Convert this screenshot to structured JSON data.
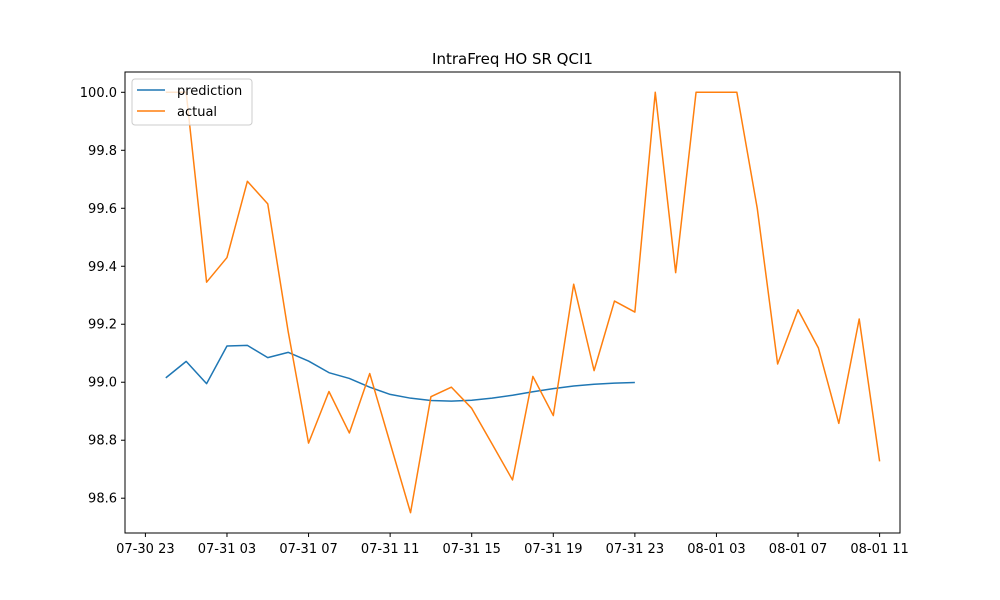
{
  "chart_data": {
    "type": "line",
    "title": "IntraFreq HO SR QCI1",
    "xlabel": "",
    "ylabel": "",
    "x_ticks": [
      "07-30 23",
      "07-31 03",
      "07-31 07",
      "07-31 11",
      "07-31 15",
      "07-31 19",
      "07-31 23",
      "08-01 03",
      "08-01 07",
      "08-01 11"
    ],
    "y_ticks": [
      "98.6",
      "98.8",
      "99.0",
      "99.2",
      "99.4",
      "99.6",
      "99.8",
      "100.0"
    ],
    "xlim": [
      "07-30 22:00",
      "08-01 12:00"
    ],
    "ylim": [
      98.48,
      100.07
    ],
    "grid": false,
    "legend_position": "top-left",
    "series": [
      {
        "name": "prediction",
        "color": "#1f77b4",
        "points": [
          {
            "x": "07-31 00:00",
            "y": 99.015
          },
          {
            "x": "07-31 01:00",
            "y": 99.072
          },
          {
            "x": "07-31 02:00",
            "y": 98.995
          },
          {
            "x": "07-31 03:00",
            "y": 99.125
          },
          {
            "x": "07-31 04:00",
            "y": 99.127
          },
          {
            "x": "07-31 05:00",
            "y": 99.085
          },
          {
            "x": "07-31 06:00",
            "y": 99.103
          },
          {
            "x": "07-31 07:00",
            "y": 99.073
          },
          {
            "x": "07-31 08:00",
            "y": 99.033
          },
          {
            "x": "07-31 09:00",
            "y": 99.013
          },
          {
            "x": "07-31 10:00",
            "y": 98.983
          },
          {
            "x": "07-31 11:00",
            "y": 98.958
          },
          {
            "x": "07-31 12:00",
            "y": 98.945
          },
          {
            "x": "07-31 13:00",
            "y": 98.937
          },
          {
            "x": "07-31 14:00",
            "y": 98.935
          },
          {
            "x": "07-31 15:00",
            "y": 98.938
          },
          {
            "x": "07-31 16:00",
            "y": 98.945
          },
          {
            "x": "07-31 17:00",
            "y": 98.955
          },
          {
            "x": "07-31 18:00",
            "y": 98.967
          },
          {
            "x": "07-31 19:00",
            "y": 98.978
          },
          {
            "x": "07-31 20:00",
            "y": 98.987
          },
          {
            "x": "07-31 21:00",
            "y": 98.993
          },
          {
            "x": "07-31 22:00",
            "y": 98.997
          },
          {
            "x": "07-31 23:00",
            "y": 98.999
          }
        ]
      },
      {
        "name": "actual",
        "color": "#ff7f0e",
        "points": [
          {
            "x": "07-31 00:00",
            "y": 100.0
          },
          {
            "x": "07-31 01:00",
            "y": 100.0
          },
          {
            "x": "07-31 02:00",
            "y": 99.345
          },
          {
            "x": "07-31 03:00",
            "y": 99.43
          },
          {
            "x": "07-31 04:00",
            "y": 99.693
          },
          {
            "x": "07-31 05:00",
            "y": 99.615
          },
          {
            "x": "07-31 06:00",
            "y": 99.175
          },
          {
            "x": "07-31 07:00",
            "y": 98.79
          },
          {
            "x": "07-31 08:00",
            "y": 98.968
          },
          {
            "x": "07-31 09:00",
            "y": 98.825
          },
          {
            "x": "07-31 10:00",
            "y": 99.03
          },
          {
            "x": "07-31 11:00",
            "y": 98.79
          },
          {
            "x": "07-31 12:00",
            "y": 98.55
          },
          {
            "x": "07-31 13:00",
            "y": 98.95
          },
          {
            "x": "07-31 14:00",
            "y": 98.983
          },
          {
            "x": "07-31 15:00",
            "y": 98.91
          },
          {
            "x": "07-31 16:00",
            "y": 98.787
          },
          {
            "x": "07-31 17:00",
            "y": 98.663
          },
          {
            "x": "07-31 18:00",
            "y": 99.02
          },
          {
            "x": "07-31 19:00",
            "y": 98.885
          },
          {
            "x": "07-31 20:00",
            "y": 99.338
          },
          {
            "x": "07-31 21:00",
            "y": 99.04
          },
          {
            "x": "07-31 22:00",
            "y": 99.28
          },
          {
            "x": "07-31 23:00",
            "y": 99.242
          },
          {
            "x": "08-01 00:00",
            "y": 100.0
          },
          {
            "x": "08-01 01:00",
            "y": 99.378
          },
          {
            "x": "08-01 02:00",
            "y": 100.0
          },
          {
            "x": "08-01 03:00",
            "y": 100.0
          },
          {
            "x": "08-01 04:00",
            "y": 100.0
          },
          {
            "x": "08-01 05:00",
            "y": 99.6
          },
          {
            "x": "08-01 06:00",
            "y": 99.063
          },
          {
            "x": "08-01 07:00",
            "y": 99.25
          },
          {
            "x": "08-01 08:00",
            "y": 99.118
          },
          {
            "x": "08-01 09:00",
            "y": 98.858
          },
          {
            "x": "08-01 10:00",
            "y": 99.218
          },
          {
            "x": "08-01 11:00",
            "y": 98.727
          }
        ]
      }
    ]
  }
}
